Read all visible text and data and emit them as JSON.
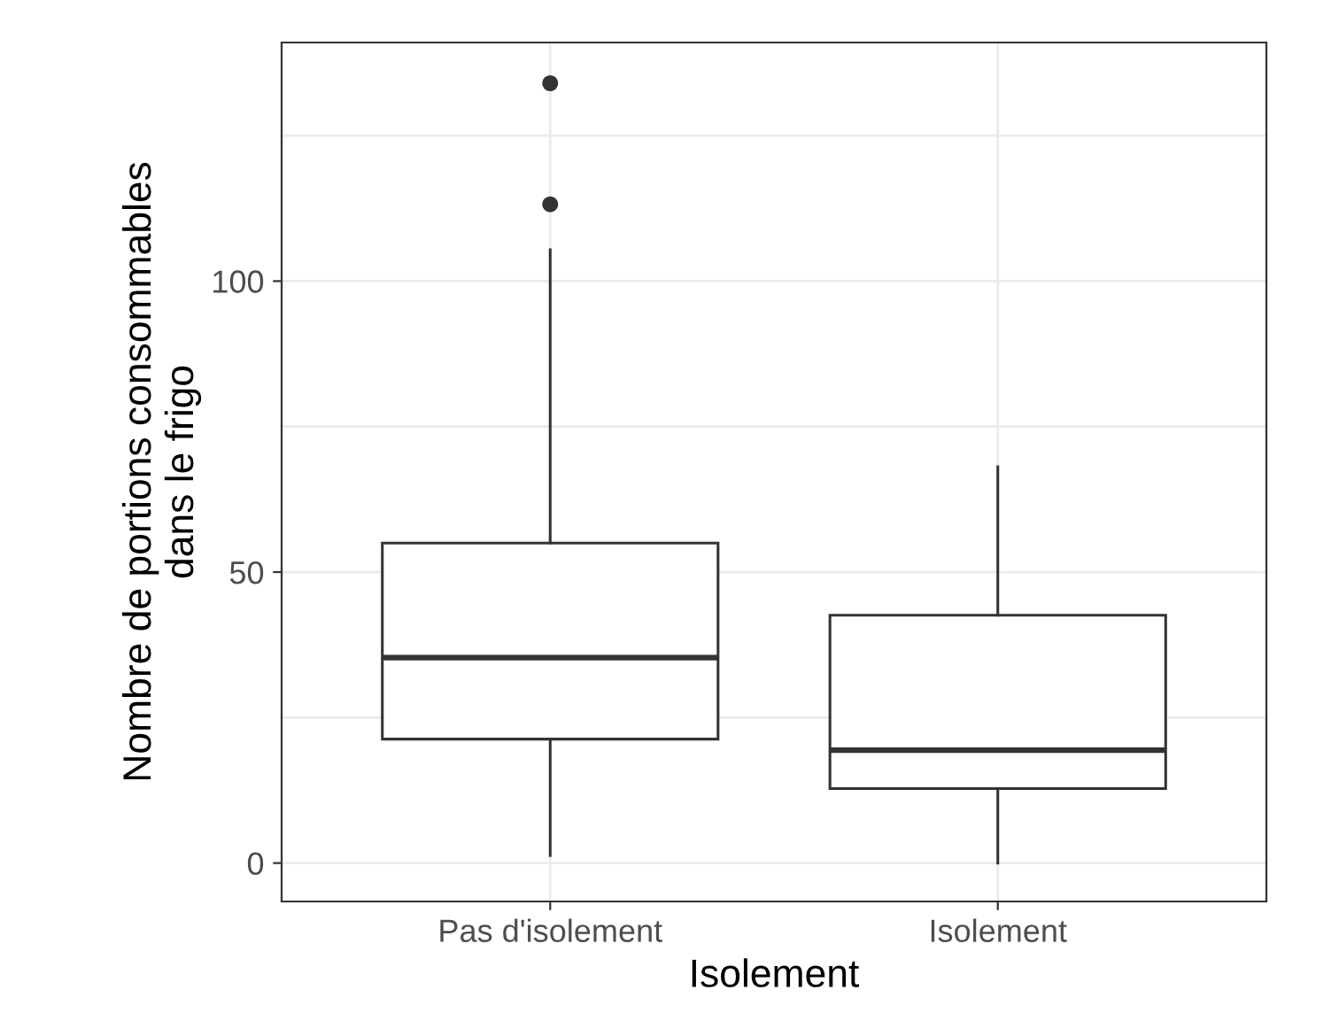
{
  "chart_data": {
    "type": "box",
    "xlabel": "Isolement",
    "ylabel": "Nombre de portions consommables\ndans le frigo",
    "categories": [
      "Pas d'isolement",
      "Isolement"
    ],
    "boxes": [
      {
        "low": 1.3,
        "q1": 21.3,
        "median": 35.3,
        "q3": 55,
        "high": 105.4,
        "outliers": [
          113.2,
          134
        ]
      },
      {
        "low": 0,
        "q1": 12.8,
        "median": 19.4,
        "q3": 42.6,
        "high": 68.1
      }
    ],
    "color": "#333333",
    "ylim": [
      -6.6,
      141
    ],
    "yticks": [
      0,
      {
        "value": 25,
        "label": null
      },
      50,
      {
        "value": 75,
        "label": null
      },
      100,
      {
        "value": 125,
        "label": null
      }
    ],
    "grid": true
  }
}
